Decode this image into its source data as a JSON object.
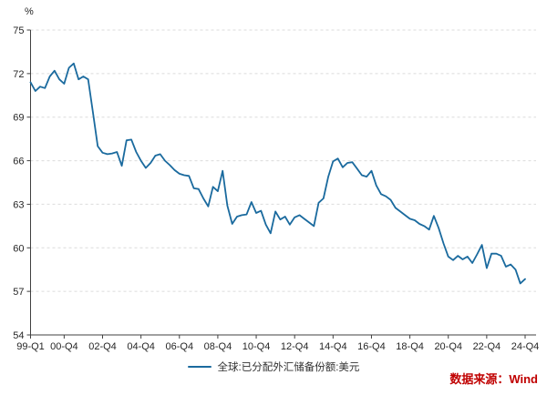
{
  "chart": {
    "unit_label": "%",
    "source_note": "数据来源：Wind"
  },
  "chart_data": {
    "type": "line",
    "title": "",
    "frequency": "quarterly",
    "x_start_label": "99-Q1",
    "x_end_label": "24-Q4",
    "x_tick_labels": [
      "99-Q1",
      "00-Q4",
      "02-Q4",
      "04-Q4",
      "06-Q4",
      "08-Q4",
      "10-Q4",
      "12-Q4",
      "14-Q4",
      "16-Q4",
      "18-Q4",
      "20-Q4",
      "22-Q4",
      "24-Q4"
    ],
    "x_tick_indices": [
      0,
      7,
      15,
      23,
      31,
      39,
      47,
      55,
      63,
      71,
      79,
      87,
      95,
      103
    ],
    "ylim": [
      54,
      75
    ],
    "y_ticks": [
      54,
      57,
      60,
      63,
      66,
      69,
      72,
      75
    ],
    "grid": "horizontal-dashed",
    "legend_position": "bottom-center",
    "axis_color": "#404040",
    "grid_color": "#DBDBDB",
    "tick_label_color": "#262626",
    "source_color": "#C00000",
    "series": [
      {
        "name": "全球:已分配外汇储备份额:美元",
        "color": "#1A6A9E",
        "values": [
          71.4,
          70.8,
          71.1,
          71.0,
          71.8,
          72.2,
          71.6,
          71.3,
          72.4,
          72.7,
          71.6,
          71.8,
          71.6,
          69.3,
          67.0,
          66.55,
          66.45,
          66.5,
          66.6,
          65.65,
          67.4,
          67.45,
          66.6,
          66.0,
          65.5,
          65.85,
          66.35,
          66.45,
          66.0,
          65.7,
          65.35,
          65.1,
          65.0,
          64.95,
          64.1,
          64.05,
          63.4,
          62.85,
          64.2,
          63.9,
          65.3,
          62.9,
          61.65,
          62.15,
          62.25,
          62.3,
          63.15,
          62.4,
          62.55,
          61.6,
          61.0,
          62.5,
          61.95,
          62.15,
          61.6,
          62.1,
          62.25,
          62.0,
          61.75,
          61.5,
          63.1,
          63.4,
          64.9,
          65.95,
          66.15,
          65.55,
          65.85,
          65.9,
          65.45,
          65.0,
          64.9,
          65.3,
          64.3,
          63.7,
          63.55,
          63.3,
          62.75,
          62.5,
          62.25,
          62.0,
          61.9,
          61.65,
          61.5,
          61.25,
          62.2,
          61.35,
          60.3,
          59.4,
          59.15,
          59.45,
          59.2,
          59.4,
          58.95,
          59.55,
          60.2,
          58.6,
          59.6,
          59.6,
          59.45,
          58.7,
          58.85,
          58.5,
          57.55,
          57.85
        ]
      }
    ]
  }
}
